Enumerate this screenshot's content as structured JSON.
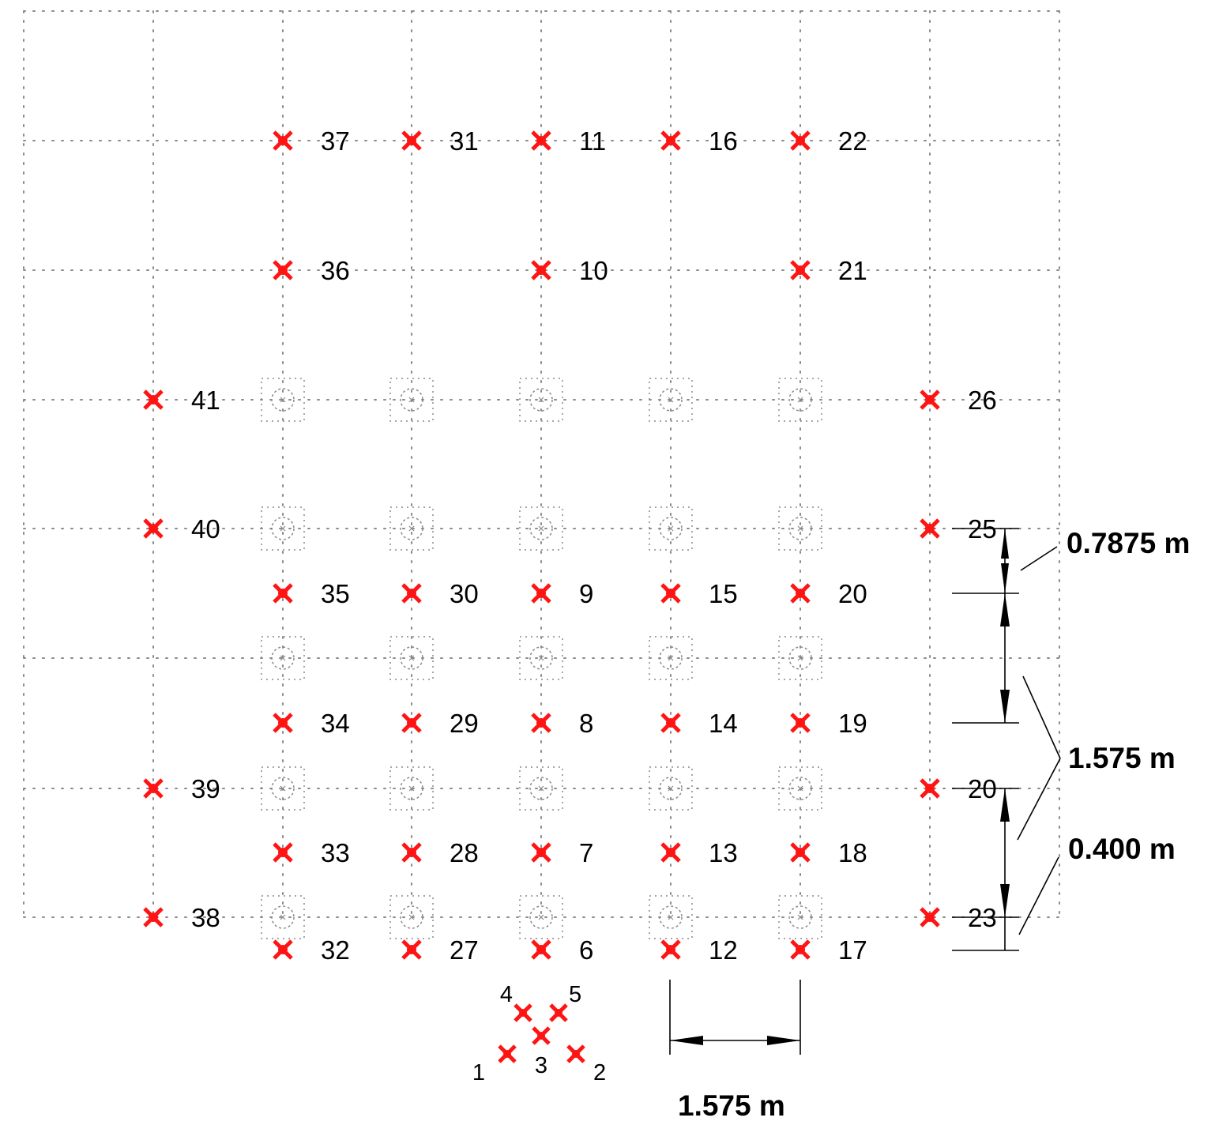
{
  "colors": {
    "sensor": "#ff1414",
    "grid": "#8a8a8a",
    "ink": "#000000"
  },
  "sensors": [
    {
      "id": "37",
      "label": "37"
    },
    {
      "id": "31",
      "label": "31"
    },
    {
      "id": "11",
      "label": "11"
    },
    {
      "id": "16",
      "label": "16"
    },
    {
      "id": "22",
      "label": "22"
    },
    {
      "id": "36",
      "label": "36"
    },
    {
      "id": "10",
      "label": "10"
    },
    {
      "id": "21",
      "label": "21"
    },
    {
      "id": "41",
      "label": "41"
    },
    {
      "id": "26",
      "label": "26"
    },
    {
      "id": "40",
      "label": "40"
    },
    {
      "id": "25",
      "label": "25"
    },
    {
      "id": "35",
      "label": "35"
    },
    {
      "id": "30",
      "label": "30"
    },
    {
      "id": "9",
      "label": "9"
    },
    {
      "id": "15",
      "label": "15"
    },
    {
      "id": "20a",
      "label": "20"
    },
    {
      "id": "34",
      "label": "34"
    },
    {
      "id": "29",
      "label": "29"
    },
    {
      "id": "8",
      "label": "8"
    },
    {
      "id": "14",
      "label": "14"
    },
    {
      "id": "19",
      "label": "19"
    },
    {
      "id": "39",
      "label": "39"
    },
    {
      "id": "20b",
      "label": "20"
    },
    {
      "id": "33",
      "label": "33"
    },
    {
      "id": "28",
      "label": "28"
    },
    {
      "id": "7",
      "label": "7"
    },
    {
      "id": "13",
      "label": "13"
    },
    {
      "id": "18",
      "label": "18"
    },
    {
      "id": "38",
      "label": "38"
    },
    {
      "id": "23",
      "label": "23"
    },
    {
      "id": "32",
      "label": "32"
    },
    {
      "id": "27",
      "label": "27"
    },
    {
      "id": "6",
      "label": "6"
    },
    {
      "id": "12",
      "label": "12"
    },
    {
      "id": "17",
      "label": "17"
    },
    {
      "id": "4",
      "label": "4"
    },
    {
      "id": "5",
      "label": "5"
    },
    {
      "id": "3",
      "label": "3"
    },
    {
      "id": "1",
      "label": "1"
    },
    {
      "id": "2",
      "label": "2"
    }
  ],
  "dimensions": {
    "vertical_top": "0.7875 m",
    "vertical_middle": "1.575 m",
    "vertical_bottom": "0.400 m",
    "horizontal": "1.575 m"
  }
}
